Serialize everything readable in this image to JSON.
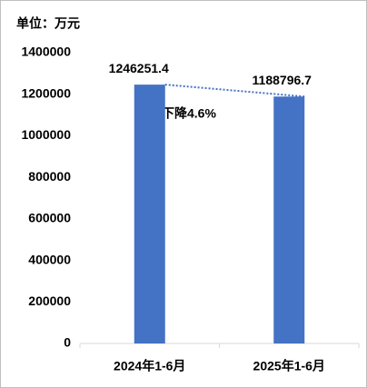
{
  "chart_data": {
    "type": "bar",
    "unit_label": "单位：万元",
    "categories": [
      "2024年1-6月",
      "2025年1-6月"
    ],
    "values": [
      1246251.4,
      1188796.7
    ],
    "color": "#4472c4",
    "ylim": [
      0,
      1400000
    ],
    "yticks": [
      0,
      200000,
      400000,
      600000,
      800000,
      1000000,
      1200000,
      1400000
    ],
    "annotation": "下降4.6%",
    "grid": false
  }
}
